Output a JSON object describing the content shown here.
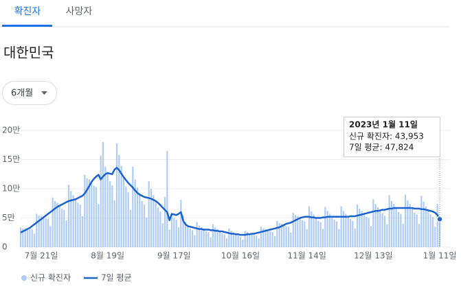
{
  "tabs": [
    "확진자",
    "사망자"
  ],
  "region": "대한민국",
  "range_button": "6개월",
  "chart_data": {
    "type": "bar",
    "ylim": [
      0,
      200000
    ],
    "yticks": [
      0,
      {
        "value": 50000,
        "label": "5만"
      },
      {
        "value": 100000,
        "label": "10만"
      },
      {
        "value": 150000,
        "label": "15만"
      },
      {
        "value": 200000,
        "label": "20만"
      }
    ],
    "grid": true,
    "legend": "bottom-left",
    "categories": [
      null,
      null,
      null,
      null,
      null,
      null,
      null,
      null,
      null,
      "7월 21일",
      null,
      null,
      null,
      null,
      null,
      null,
      null,
      null,
      null,
      null,
      null,
      null,
      null,
      null,
      null,
      null,
      null,
      null,
      null,
      null,
      null,
      null,
      null,
      null,
      null,
      null,
      null,
      null,
      "8월 19일",
      null,
      null,
      null,
      null,
      null,
      null,
      null,
      null,
      null,
      null,
      null,
      null,
      null,
      null,
      null,
      null,
      null,
      null,
      null,
      null,
      null,
      null,
      null,
      null,
      null,
      null,
      null,
      null,
      "9월 17일",
      null,
      null,
      null,
      null,
      null,
      null,
      null,
      null,
      null,
      null,
      null,
      null,
      null,
      null,
      null,
      null,
      null,
      null,
      null,
      null,
      null,
      null,
      null,
      null,
      null,
      null,
      null,
      null,
      "10월 16일",
      null,
      null,
      null,
      null,
      null,
      null,
      null,
      null,
      null,
      null,
      null,
      null,
      null,
      null,
      null,
      null,
      null,
      null,
      null,
      null,
      null,
      null,
      null,
      null,
      null,
      null,
      null,
      null,
      "11월 14일",
      null,
      null,
      null,
      null,
      null,
      null,
      null,
      null,
      null,
      null,
      null,
      null,
      null,
      null,
      null,
      null,
      null,
      null,
      null,
      null,
      null,
      null,
      null,
      null,
      null,
      null,
      null,
      null,
      "12월 13일",
      null,
      null,
      null,
      null,
      null,
      null,
      null,
      null,
      null,
      null,
      null,
      null,
      null,
      null,
      null,
      null,
      null,
      null,
      null,
      null,
      null,
      null,
      null,
      null,
      null,
      null,
      null,
      null,
      "1월 11일"
    ],
    "series": [
      {
        "name": "신규 확진자",
        "type": "bar",
        "color": "#aecbfa",
        "values": [
          34000,
          32000,
          32000,
          31000,
          30000,
          31000,
          23000,
          57000,
          54000,
          53000,
          51000,
          49000,
          48000,
          36000,
          85000,
          79000,
          76000,
          71000,
          66000,
          64000,
          46000,
          107000,
          96000,
          89000,
          82000,
          76000,
          73000,
          53000,
          124000,
          118000,
          116000,
          112000,
          105000,
          103000,
          74000,
          157000,
          180000,
          138000,
          127000,
          113000,
          106000,
          80000,
          178000,
          158000,
          139000,
          120000,
          104000,
          94000,
          64000,
          138000,
          116000,
          102000,
          90000,
          79000,
          73000,
          51000,
          113000,
          100000,
          89000,
          79000,
          68000,
          61000,
          41000,
          86000,
          165000,
          30000,
          57000,
          50000,
          47000,
          34000,
          81000,
          54000,
          43000,
          36000,
          32000,
          29000,
          20000,
          43000,
          37000,
          34000,
          30000,
          27000,
          26000,
          17000,
          39000,
          34000,
          31000,
          27000,
          24000,
          22000,
          15000,
          32000,
          28000,
          25000,
          22000,
          20000,
          18000,
          13000,
          28000,
          26000,
          24000,
          23000,
          21000,
          20000,
          15000,
          35000,
          32000,
          31000,
          29000,
          27000,
          26000,
          19000,
          45000,
          41000,
          40000,
          38000,
          36000,
          35000,
          25000,
          59000,
          55000,
          53000,
          50000,
          46000,
          44000,
          31000,
          70000,
          61000,
          56000,
          50000,
          45000,
          43000,
          31000,
          69000,
          62000,
          57000,
          52000,
          47000,
          44000,
          31000,
          70000,
          62000,
          57000,
          52000,
          48000,
          45000,
          32000,
          73000,
          66000,
          62000,
          57000,
          52000,
          50000,
          36000,
          82000,
          74000,
          68000,
          63000,
          58000,
          54000,
          39000,
          89000,
          79000,
          74000,
          67000,
          60000,
          57000,
          40000,
          90000,
          80000,
          74000,
          67000,
          59000,
          56000,
          40000,
          88000,
          78000,
          70000,
          63000,
          56000,
          52000,
          35000,
          74000,
          43953
        ]
      },
      {
        "name": "7일 평균",
        "type": "line",
        "color": "#1a62d0",
        "values": [
          25000,
          27000,
          29000,
          31000,
          33000,
          36000,
          39000,
          42000,
          45000,
          48000,
          51000,
          54000,
          57000,
          60000,
          63000,
          66000,
          69000,
          71000,
          73000,
          75000,
          77000,
          79000,
          80000,
          81000,
          82000,
          84000,
          86000,
          88000,
          92000,
          98000,
          105000,
          112000,
          117000,
          121000,
          124000,
          116000,
          121000,
          125000,
          127000,
          126000,
          125000,
          133000,
          136000,
          132000,
          126000,
          120000,
          115000,
          110000,
          106000,
          102000,
          97000,
          93000,
          90000,
          88000,
          86000,
          85000,
          84000,
          83000,
          81000,
          79000,
          76000,
          72000,
          68000,
          64000,
          60000,
          46000,
          57000,
          56000,
          55000,
          57000,
          60000,
          45000,
          39000,
          36000,
          35000,
          34000,
          33000,
          32000,
          31000,
          31000,
          30000,
          30000,
          30000,
          29000,
          29000,
          28000,
          28000,
          27000,
          27000,
          26000,
          25000,
          24000,
          23000,
          23000,
          22000,
          22000,
          21000,
          21000,
          21000,
          22000,
          22000,
          23000,
          23000,
          24000,
          25000,
          26000,
          27000,
          28000,
          29000,
          30000,
          31000,
          32000,
          33000,
          34000,
          36000,
          38000,
          40000,
          41000,
          42000,
          44000,
          46000,
          48000,
          50000,
          51000,
          52000,
          52000,
          52000,
          51000,
          51000,
          50000,
          50000,
          50000,
          51000,
          51000,
          52000,
          52000,
          52000,
          52000,
          52000,
          52000,
          52000,
          52000,
          52000,
          52000,
          53000,
          53000,
          53000,
          54000,
          55000,
          56000,
          57000,
          58000,
          59000,
          60000,
          61000,
          62000,
          62000,
          63000,
          64000,
          64000,
          65000,
          66000,
          66000,
          67000,
          67000,
          67000,
          67000,
          67000,
          67000,
          67000,
          67000,
          67000,
          66000,
          66000,
          66000,
          65000,
          65000,
          64000,
          63000,
          62000,
          61000,
          59000,
          55000,
          47824
        ]
      }
    ],
    "tooltip": {
      "title": "2023년 1월 11일",
      "lines": [
        "신규 확진자: 43,953",
        "7일 평균: 47,824"
      ]
    }
  }
}
